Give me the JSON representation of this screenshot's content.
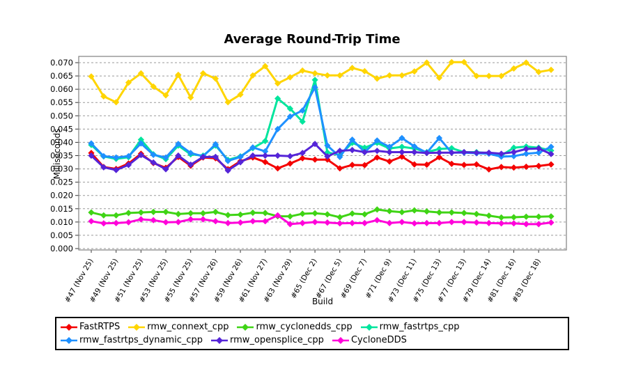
{
  "chart_data": {
    "type": "line",
    "title": "Average Round-Trip Time",
    "xlabel": "Build",
    "ylabel": "Milliseconds",
    "ylim": [
      0.0,
      0.07
    ],
    "ytick_step": 0.005,
    "ytick_labels": [
      "0.000",
      "0.005",
      "0.010",
      "0.015",
      "0.020",
      "0.025",
      "0.030",
      "0.035",
      "0.040",
      "0.045",
      "0.050",
      "0.055",
      "0.060",
      "0.065",
      "0.070"
    ],
    "n_points": 38,
    "xtick_labels": [
      {
        "index": 0,
        "label": "#47 (Nov 25)"
      },
      {
        "index": 2,
        "label": "#49 (Nov 25)"
      },
      {
        "index": 4,
        "label": "#51 (Nov 25)"
      },
      {
        "index": 6,
        "label": "#53 (Nov 25)"
      },
      {
        "index": 8,
        "label": "#55 (Nov 25)"
      },
      {
        "index": 10,
        "label": "#57 (Nov 26)"
      },
      {
        "index": 12,
        "label": "#59 (Nov 26)"
      },
      {
        "index": 14,
        "label": "#61 (Nov 27)"
      },
      {
        "index": 16,
        "label": "#63 (Nov 29)"
      },
      {
        "index": 18,
        "label": "#65 (Dec 2)"
      },
      {
        "index": 20,
        "label": "#67 (Dec 5)"
      },
      {
        "index": 22,
        "label": "#69 (Dec 7)"
      },
      {
        "index": 24,
        "label": "#71 (Dec 9)"
      },
      {
        "index": 26,
        "label": "#73 (Dec 11)"
      },
      {
        "index": 28,
        "label": "#75 (Dec 13)"
      },
      {
        "index": 30,
        "label": "#77 (Dec 13)"
      },
      {
        "index": 32,
        "label": "#79 (Dec 14)"
      },
      {
        "index": 34,
        "label": "#81 (Dec 16)"
      },
      {
        "index": 36,
        "label": "#83 (Dec 18)"
      }
    ],
    "grid": {
      "horizontal": true,
      "style": "dashed",
      "color": "#999999"
    },
    "frame_color": "#808080",
    "marker": "diamond",
    "legend_position": "bottom-left",
    "series": [
      {
        "name": "FastRTPS",
        "color": "#f40000",
        "values": [
          0.036,
          0.0307,
          0.03,
          0.032,
          0.0357,
          0.0322,
          0.0304,
          0.0345,
          0.0312,
          0.0343,
          0.034,
          0.0299,
          0.0329,
          0.0343,
          0.0326,
          0.0302,
          0.032,
          0.034,
          0.0335,
          0.0335,
          0.0302,
          0.0315,
          0.0314,
          0.0343,
          0.0328,
          0.0346,
          0.0317,
          0.0316,
          0.0344,
          0.0319,
          0.0315,
          0.0317,
          0.0298,
          0.0307,
          0.0305,
          0.0308,
          0.0311,
          0.0317
        ]
      },
      {
        "name": "rmw_connext_cpp",
        "color": "#ffd500",
        "values": [
          0.0648,
          0.0573,
          0.0551,
          0.0625,
          0.066,
          0.061,
          0.0577,
          0.0654,
          0.0569,
          0.066,
          0.064,
          0.0551,
          0.058,
          0.0652,
          0.0687,
          0.0622,
          0.0645,
          0.067,
          0.066,
          0.0652,
          0.0652,
          0.068,
          0.0668,
          0.064,
          0.0652,
          0.0652,
          0.0667,
          0.07,
          0.0643,
          0.0702,
          0.0702,
          0.065,
          0.065,
          0.065,
          0.0678,
          0.07,
          0.0665,
          0.0673
        ]
      },
      {
        "name": "rmw_cyclonedds_cpp",
        "color": "#3fd415",
        "values": [
          0.0136,
          0.0125,
          0.0125,
          0.0134,
          0.0136,
          0.0138,
          0.0138,
          0.013,
          0.0133,
          0.0133,
          0.0138,
          0.0126,
          0.0128,
          0.0135,
          0.0134,
          0.0122,
          0.0121,
          0.0131,
          0.0133,
          0.0129,
          0.0118,
          0.0132,
          0.0129,
          0.0147,
          0.0141,
          0.0137,
          0.0144,
          0.014,
          0.0136,
          0.0136,
          0.0134,
          0.013,
          0.0124,
          0.0117,
          0.0118,
          0.012,
          0.012,
          0.0121
        ]
      },
      {
        "name": "rmw_fastrtps_cpp",
        "color": "#00e59d",
        "values": [
          0.039,
          0.0347,
          0.0338,
          0.0344,
          0.041,
          0.0355,
          0.0337,
          0.0388,
          0.0355,
          0.035,
          0.0388,
          0.0334,
          0.0347,
          0.0378,
          0.0405,
          0.0565,
          0.0527,
          0.0478,
          0.0635,
          0.0362,
          0.0352,
          0.0398,
          0.038,
          0.0398,
          0.0377,
          0.0383,
          0.0377,
          0.0363,
          0.0375,
          0.0378,
          0.0363,
          0.0363,
          0.0359,
          0.035,
          0.038,
          0.0384,
          0.038,
          0.0369
        ]
      },
      {
        "name": "rmw_fastrtps_dynamic_cpp",
        "color": "#1e90ff",
        "values": [
          0.0396,
          0.0348,
          0.0343,
          0.0348,
          0.0396,
          0.0353,
          0.0343,
          0.0394,
          0.036,
          0.0347,
          0.0393,
          0.033,
          0.0345,
          0.0381,
          0.0366,
          0.045,
          0.0497,
          0.052,
          0.0607,
          0.0388,
          0.0345,
          0.041,
          0.0363,
          0.0407,
          0.0383,
          0.0416,
          0.0385,
          0.0361,
          0.0416,
          0.0361,
          0.0361,
          0.0359,
          0.0357,
          0.0346,
          0.0348,
          0.0357,
          0.0361,
          0.0383
        ]
      },
      {
        "name": "rmw_opensplice_cpp",
        "color": "#5524d8",
        "values": [
          0.035,
          0.0306,
          0.0296,
          0.0315,
          0.0352,
          0.0324,
          0.0299,
          0.035,
          0.0316,
          0.0345,
          0.0345,
          0.0294,
          0.0325,
          0.035,
          0.035,
          0.035,
          0.0348,
          0.036,
          0.0394,
          0.0347,
          0.0368,
          0.0371,
          0.0363,
          0.0368,
          0.0363,
          0.0363,
          0.0363,
          0.036,
          0.0361,
          0.0361,
          0.0363,
          0.0361,
          0.0361,
          0.0357,
          0.0363,
          0.0375,
          0.0377,
          0.0356
        ]
      },
      {
        "name": "CycloneDDS",
        "color": "#ff00da",
        "values": [
          0.0103,
          0.0095,
          0.0096,
          0.0099,
          0.011,
          0.0107,
          0.0099,
          0.01,
          0.011,
          0.011,
          0.0103,
          0.0096,
          0.0098,
          0.0103,
          0.0103,
          0.0125,
          0.0092,
          0.0096,
          0.01,
          0.0098,
          0.0095,
          0.0096,
          0.0096,
          0.0107,
          0.0096,
          0.01,
          0.0095,
          0.0096,
          0.0096,
          0.01,
          0.01,
          0.0098,
          0.0096,
          0.0095,
          0.0095,
          0.0092,
          0.0092,
          0.0098
        ]
      }
    ]
  }
}
